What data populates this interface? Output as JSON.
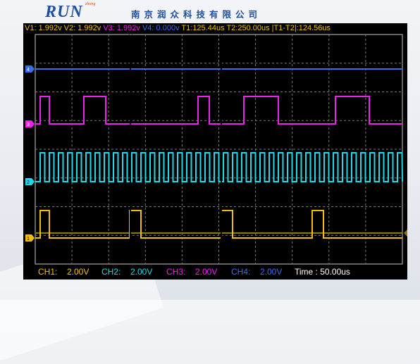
{
  "header": {
    "logo_text": "RUN",
    "logo_sub": "zhong",
    "company_name": "南京润众科技有限公司"
  },
  "readout": {
    "v1": "V1: 1.992v",
    "v2": "V2: 1.992v",
    "v3": "V3: 1.992v",
    "v4": "V4: 0.000v",
    "t1": "T1:125.44us",
    "t2": "T2:250.00us",
    "dt": "|T1-T2|:124.56us"
  },
  "cursors": {
    "t1_label": "T1",
    "t2_label": "T2"
  },
  "channels": [
    {
      "id": "ch1",
      "marker": "1",
      "color": "#f0c000",
      "scale_label": "CH1:",
      "scale_value": "2.00V"
    },
    {
      "id": "ch2",
      "marker": "2",
      "color": "#20d8e8",
      "scale_label": "CH2:",
      "scale_value": "2.00V"
    },
    {
      "id": "ch3",
      "marker": "3",
      "color": "#f020f0",
      "scale_label": "CH3:",
      "scale_value": "2.00V"
    },
    {
      "id": "ch4",
      "marker": "4",
      "color": "#3a6ee8",
      "scale_label": "CH4:",
      "scale_value": "2.00V"
    }
  ],
  "timebase": "Time : 50.00us",
  "colors": {
    "grid": "#7a7a7a",
    "border": "#c8c8c8",
    "trigger": "#8a7a00"
  }
}
